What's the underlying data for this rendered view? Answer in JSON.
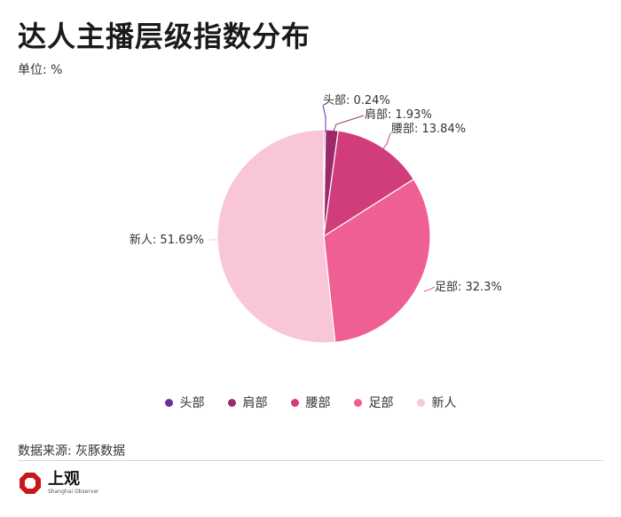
{
  "header": {
    "title": "达人主播层级指数分布",
    "unit": "单位: %"
  },
  "chart_data": {
    "type": "pie",
    "categories": [
      "头部",
      "肩部",
      "腰部",
      "足部",
      "新人"
    ],
    "values": [
      0.24,
      1.93,
      13.84,
      32.3,
      51.69
    ],
    "colors": [
      "#6b2fa0",
      "#9c2a6a",
      "#d03d7a",
      "#ef5f93",
      "#f9c6d8"
    ],
    "labels": [
      "头部: 0.24%",
      "肩部: 1.93%",
      "腰部: 13.84%",
      "足部: 32.3%",
      "新人: 51.69%"
    ],
    "legend_position": "bottom"
  },
  "footer": {
    "source": "数据来源: 灰豚数据",
    "logo_cn": "上观",
    "logo_en": "Shanghai Observer"
  }
}
